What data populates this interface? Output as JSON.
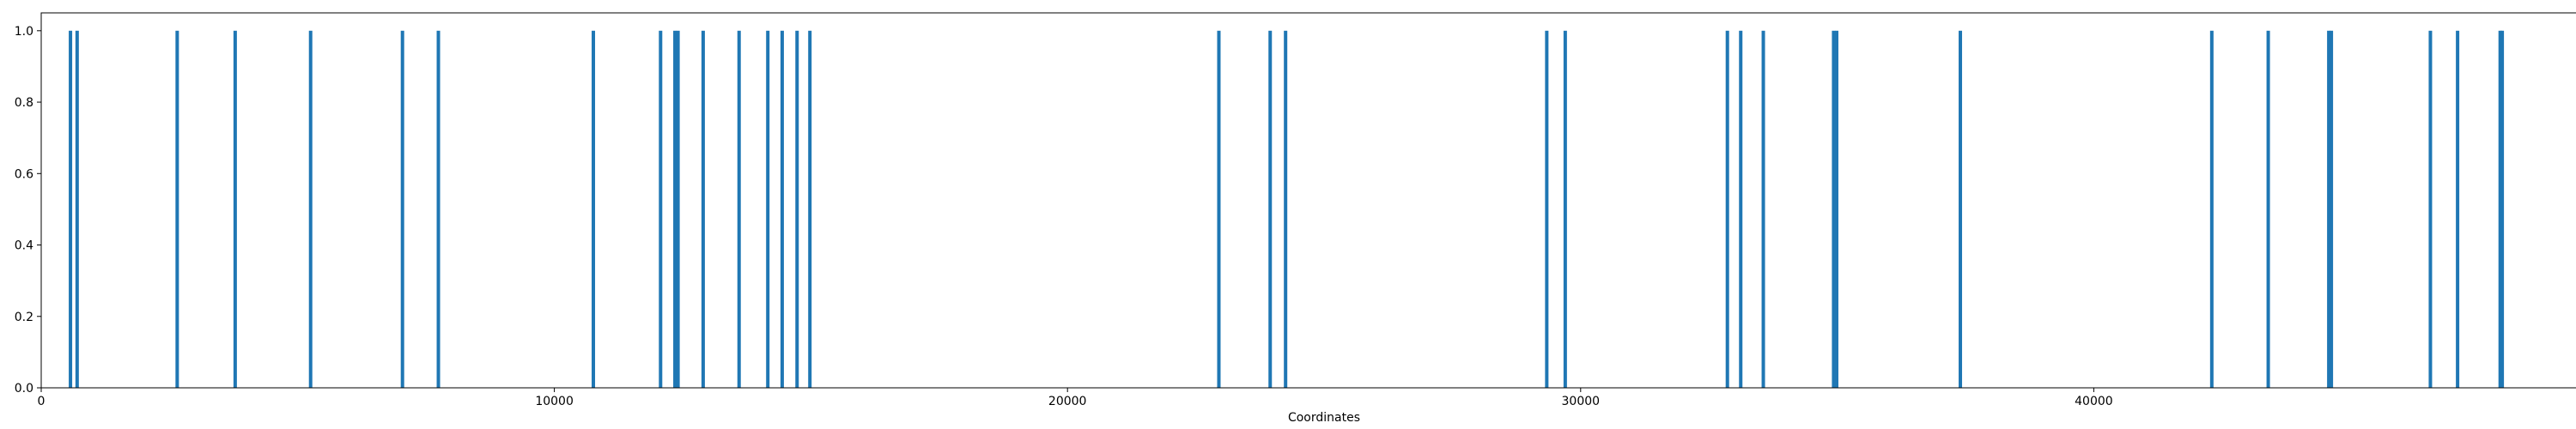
{
  "chart_data": {
    "type": "bar",
    "title": "",
    "xlabel": "Coordinates",
    "ylabel": "",
    "xlim": [
      0,
      50000
    ],
    "ylim": [
      0,
      1.05
    ],
    "grid": false,
    "legend": "none",
    "bar_color": "#1f77b4",
    "x_ticks": [
      {
        "value": 0,
        "label": "0"
      },
      {
        "value": 10000,
        "label": "10000"
      },
      {
        "value": 20000,
        "label": "20000"
      },
      {
        "value": 30000,
        "label": "30000"
      },
      {
        "value": 40000,
        "label": "40000"
      },
      {
        "value": 50000,
        "label": "50000"
      }
    ],
    "y_ticks": [
      {
        "value": 0.0,
        "label": "0.0"
      },
      {
        "value": 0.2,
        "label": "0.2"
      },
      {
        "value": 0.4,
        "label": "0.4"
      },
      {
        "value": 0.6,
        "label": "0.6"
      },
      {
        "value": 0.8,
        "label": "0.8"
      },
      {
        "value": 1.0,
        "label": "1.0"
      }
    ],
    "x": [
      570,
      700,
      2650,
      3780,
      5250,
      7040,
      7740,
      10760,
      12070,
      12350,
      12410,
      12900,
      13600,
      14160,
      14440,
      14730,
      14980,
      22950,
      23950,
      24250,
      29340,
      29700,
      32860,
      33120,
      33560,
      34930,
      34990,
      37400,
      42300,
      43400,
      44580,
      44630,
      46560,
      47090,
      47920,
      47960
    ],
    "values": [
      1,
      1,
      1,
      1,
      1,
      1,
      1,
      1,
      1,
      1,
      1,
      1,
      1,
      1,
      1,
      1,
      1,
      1,
      1,
      1,
      1,
      1,
      1,
      1,
      1,
      1,
      1,
      1,
      1,
      1,
      1,
      1,
      1,
      1,
      1,
      1
    ]
  }
}
